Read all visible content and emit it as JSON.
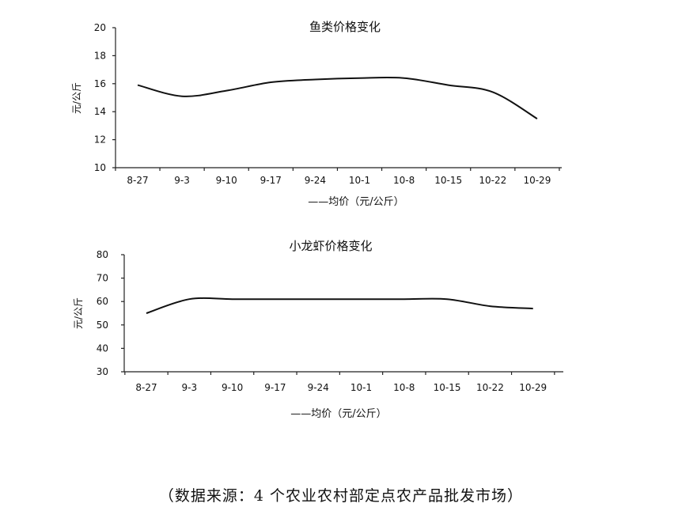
{
  "chart_data": [
    {
      "type": "line",
      "title": "鱼类价格变化",
      "ylabel": "元/公斤",
      "categories": [
        "8-27",
        "9-3",
        "9-10",
        "9-17",
        "9-24",
        "10-1",
        "10-8",
        "10-15",
        "10-22",
        "10-29"
      ],
      "series": [
        {
          "name": "——均价（元/公斤）",
          "values": [
            15.9,
            15.1,
            15.5,
            16.1,
            16.3,
            16.4,
            16.4,
            15.9,
            15.4,
            13.5
          ]
        }
      ],
      "ylim": [
        10,
        20
      ],
      "yticks": [
        10,
        12,
        14,
        16,
        18,
        20
      ],
      "grid": false,
      "legend_position": "bottom"
    },
    {
      "type": "line",
      "title": "小龙虾价格变化",
      "ylabel": "元/公斤",
      "categories": [
        "8-27",
        "9-3",
        "9-10",
        "9-17",
        "9-24",
        "10-1",
        "10-8",
        "10-15",
        "10-22",
        "10-29"
      ],
      "series": [
        {
          "name": "——均价（元/公斤）",
          "values": [
            55,
            61,
            61,
            61,
            61,
            61,
            61,
            61,
            58,
            57
          ]
        }
      ],
      "ylim": [
        30,
        80
      ],
      "yticks": [
        30,
        40,
        50,
        60,
        70,
        80
      ],
      "grid": false,
      "legend_position": "bottom"
    }
  ],
  "source": "（数据来源：4 个农业农村部定点农产品批发市场）"
}
